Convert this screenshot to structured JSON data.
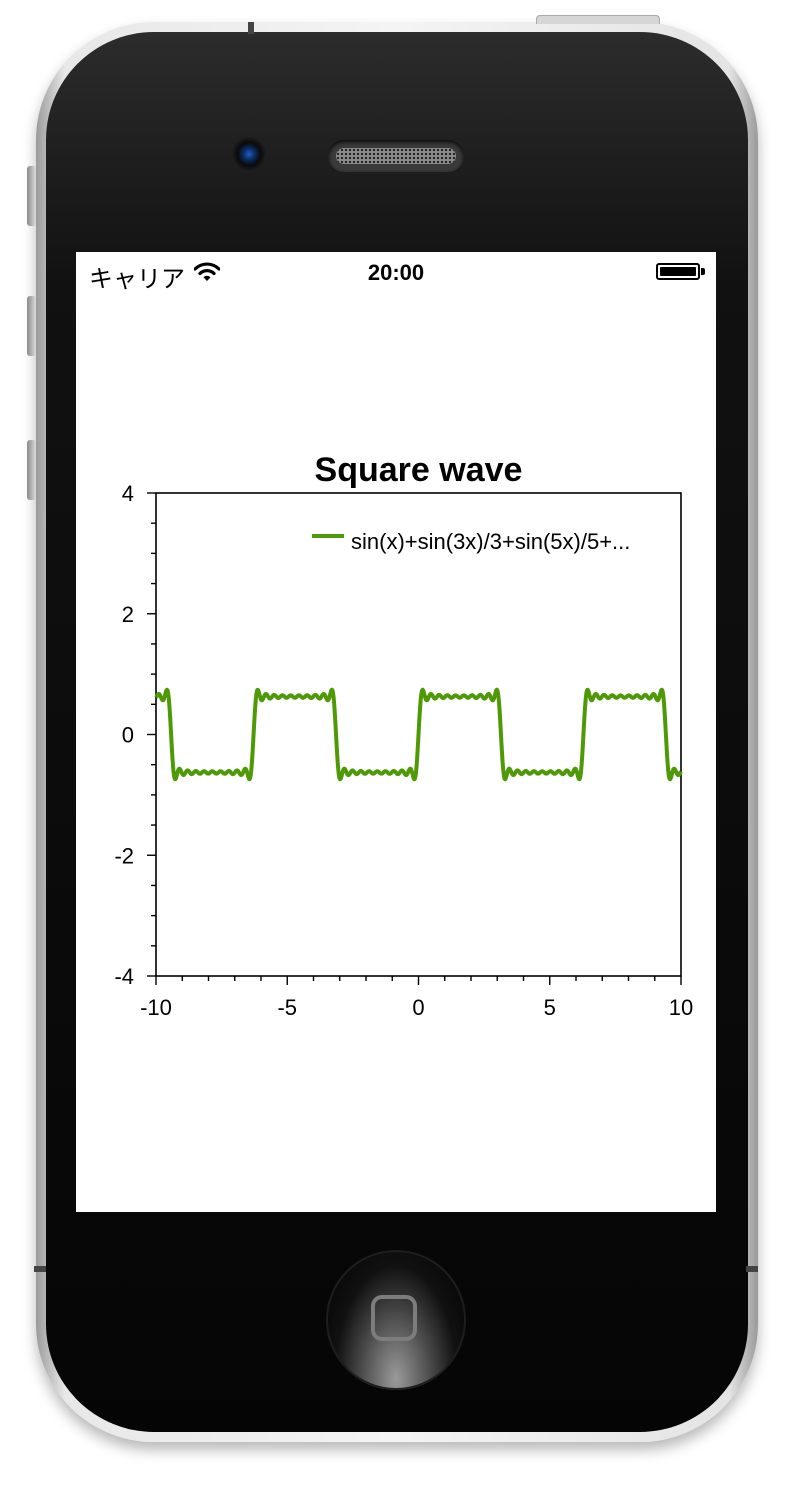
{
  "status_bar": {
    "carrier": "キャリア",
    "time": "20:00"
  },
  "icons": {
    "wifi": "wifi-icon",
    "battery": "battery-icon",
    "home": "home-button-icon"
  },
  "chart_data": {
    "type": "line",
    "title": "Square wave",
    "xlabel": "",
    "ylabel": "",
    "xlim": [
      -10,
      10
    ],
    "ylim": [
      -4,
      4
    ],
    "xticks": [
      -10,
      -5,
      0,
      5,
      10
    ],
    "yticks": [
      -4,
      -2,
      0,
      2,
      4
    ],
    "grid": false,
    "legend_position": "top-right",
    "series": [
      {
        "name": "sin(x)+sin(3x)/3+sin(5x)/5+...",
        "color": "#4e9a06",
        "function": "0.8 * sum over odd k = 1..19 of sin(k*x)/k (Fourier series of a square wave, amplitude ~0.79)",
        "x": [
          -10,
          -9.4,
          -9.0,
          -7.5,
          -6.4,
          -6.0,
          -4.5,
          -3.3,
          -2.9,
          -1.5,
          -0.2,
          0.2,
          1.5,
          2.9,
          3.3,
          4.5,
          6.0,
          6.4,
          7.5,
          9.0,
          9.4,
          10
        ],
        "y": [
          0.79,
          0.79,
          -0.79,
          -0.79,
          -0.79,
          0.79,
          0.79,
          0.79,
          -0.79,
          -0.79,
          -0.79,
          0.79,
          0.79,
          0.79,
          -0.79,
          -0.79,
          -0.79,
          0.79,
          0.79,
          0.79,
          -0.79,
          -0.79
        ]
      }
    ]
  }
}
